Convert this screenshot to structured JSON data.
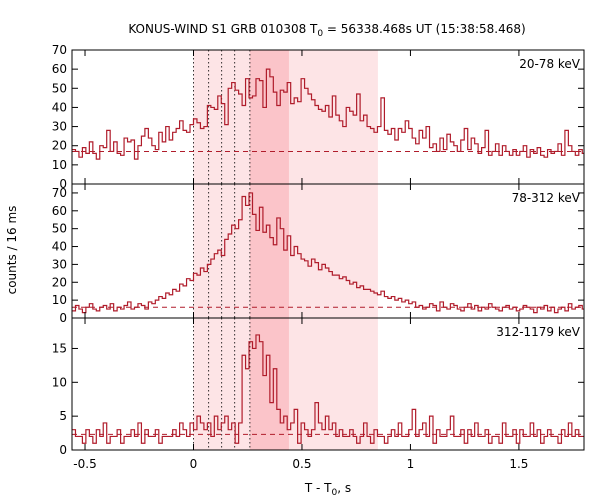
{
  "title": {
    "prefix": "KONUS-WIND S1 GRB 010308 T",
    "sub": "0",
    "suffix": " = 56338.468s UT (15:38:58.468)"
  },
  "xlabel": {
    "prefix": "T - T",
    "sub": "0",
    "suffix": ", s"
  },
  "ylabel": "counts / 16 ms",
  "colors": {
    "hist": "#b01c2b",
    "shade_light": "#fde4e6",
    "shade_dark": "#fbc4c9"
  },
  "chart_data": {
    "type": "histogram",
    "xlim": [
      -0.56,
      1.8
    ],
    "bin_width_s": 0.016,
    "x_ticks": [
      -0.5,
      0,
      0.5,
      1,
      1.5
    ],
    "x_tick_labels": [
      "-0.5",
      "0",
      "0.5",
      "1",
      "1.5"
    ],
    "shaded_intervals": [
      {
        "range": [
          0.0,
          0.85
        ],
        "tone": "light"
      },
      {
        "range": [
          0.26,
          0.44
        ],
        "tone": "dark"
      }
    ],
    "dotted_markers": [
      0.0,
      0.07,
      0.13,
      0.19,
      0.26
    ],
    "panels": [
      {
        "label": "20-78 keV",
        "ylim": [
          0,
          70
        ],
        "y_ticks": [
          0,
          10,
          20,
          30,
          40,
          50,
          60,
          70
        ],
        "y_tick_labels": [
          "0",
          "10",
          "20",
          "30",
          "40",
          "50",
          "60",
          "70"
        ],
        "background": 17,
        "values": [
          18,
          17,
          14,
          19,
          16,
          22,
          16,
          13,
          20,
          19,
          28,
          17,
          22,
          16,
          15,
          24,
          22,
          23,
          13,
          20,
          25,
          29,
          24,
          20,
          18,
          27,
          22,
          30,
          23,
          27,
          29,
          33,
          28,
          27,
          31,
          34,
          32,
          29,
          30,
          41,
          40,
          39,
          46,
          42,
          31,
          50,
          53,
          49,
          47,
          41,
          55,
          45,
          46,
          55,
          54,
          40,
          60,
          56,
          48,
          41,
          49,
          48,
          53,
          42,
          45,
          43,
          55,
          50,
          47,
          44,
          41,
          39,
          38,
          41,
          35,
          46,
          36,
          33,
          30,
          40,
          38,
          36,
          47,
          33,
          36,
          30,
          29,
          27,
          30,
          45,
          28,
          26,
          29,
          23,
          29,
          27,
          33,
          29,
          24,
          21,
          28,
          24,
          30,
          19,
          21,
          17,
          24,
          18,
          26,
          22,
          20,
          17,
          23,
          29,
          18,
          24,
          21,
          16,
          19,
          28,
          15,
          17,
          21,
          15,
          20,
          17,
          15,
          18,
          15,
          17,
          20,
          14,
          18,
          16,
          19,
          15,
          14,
          18,
          16,
          17,
          21,
          15,
          28,
          20,
          17,
          15,
          18,
          16
        ]
      },
      {
        "label": "78-312 keV",
        "ylim": [
          0,
          75
        ],
        "y_ticks": [
          0,
          10,
          20,
          30,
          40,
          50,
          60,
          70
        ],
        "y_tick_labels": [
          "0",
          "10",
          "20",
          "30",
          "40",
          "50",
          "60",
          "70"
        ],
        "background": 6,
        "values": [
          4,
          7,
          5,
          3,
          6,
          8,
          5,
          4,
          6,
          7,
          5,
          8,
          4,
          6,
          5,
          7,
          9,
          5,
          6,
          8,
          7,
          5,
          9,
          8,
          10,
          12,
          11,
          14,
          13,
          16,
          15,
          19,
          18,
          22,
          21,
          25,
          24,
          28,
          26,
          30,
          33,
          36,
          38,
          35,
          44,
          47,
          52,
          50,
          55,
          68,
          63,
          70,
          58,
          49,
          62,
          48,
          52,
          45,
          41,
          56,
          50,
          38,
          46,
          35,
          40,
          36,
          33,
          32,
          29,
          33,
          31,
          27,
          30,
          28,
          26,
          24,
          24,
          22,
          23,
          21,
          19,
          20,
          17,
          18,
          16,
          16,
          15,
          14,
          13,
          15,
          12,
          11,
          12,
          10,
          11,
          9,
          10,
          8,
          9,
          6,
          7,
          5,
          6,
          8,
          7,
          4,
          9,
          6,
          5,
          8,
          7,
          5,
          4,
          6,
          8,
          5,
          7,
          4,
          6,
          5,
          8,
          6,
          5,
          4,
          6,
          7,
          5,
          6,
          4,
          5,
          7,
          6,
          5,
          3,
          6,
          5,
          7,
          4,
          6,
          3,
          5,
          6,
          4,
          8,
          5,
          6,
          7,
          5
        ]
      },
      {
        "label": "312-1179 keV",
        "ylim": [
          0,
          19.5
        ],
        "y_ticks": [
          0,
          5,
          10,
          15
        ],
        "y_tick_labels": [
          "0",
          "5",
          "10",
          "15"
        ],
        "background": 2.3,
        "values": [
          3,
          2,
          2,
          1,
          3,
          2,
          1,
          3,
          2,
          4,
          1,
          2,
          2,
          3,
          1,
          2,
          2,
          3,
          2,
          4,
          1,
          3,
          2,
          2,
          3,
          1,
          2,
          2,
          2,
          3,
          2,
          4,
          3,
          2,
          4,
          3,
          5,
          4,
          3,
          4,
          2,
          5,
          3,
          4,
          5,
          3,
          4,
          1,
          4,
          14,
          12,
          16,
          15,
          17,
          16,
          11,
          14,
          7,
          12,
          6,
          4,
          5,
          3,
          4,
          6,
          1,
          4,
          3,
          2,
          3,
          7,
          4,
          3,
          5,
          3,
          4,
          2,
          3,
          2,
          2,
          3,
          2,
          1,
          2,
          4,
          2,
          1,
          3,
          2,
          2,
          1,
          2,
          3,
          2,
          4,
          2,
          2,
          3,
          6,
          2,
          3,
          4,
          2,
          5,
          1,
          3,
          2,
          2,
          3,
          5,
          2,
          2,
          3,
          1,
          3,
          2,
          4,
          2,
          2,
          3,
          1,
          2,
          2,
          1,
          4,
          2,
          2,
          3,
          1,
          3,
          2,
          2,
          4,
          2,
          3,
          1,
          2,
          3,
          2,
          2,
          1,
          3,
          2,
          4,
          2,
          3,
          2,
          2
        ]
      }
    ]
  }
}
